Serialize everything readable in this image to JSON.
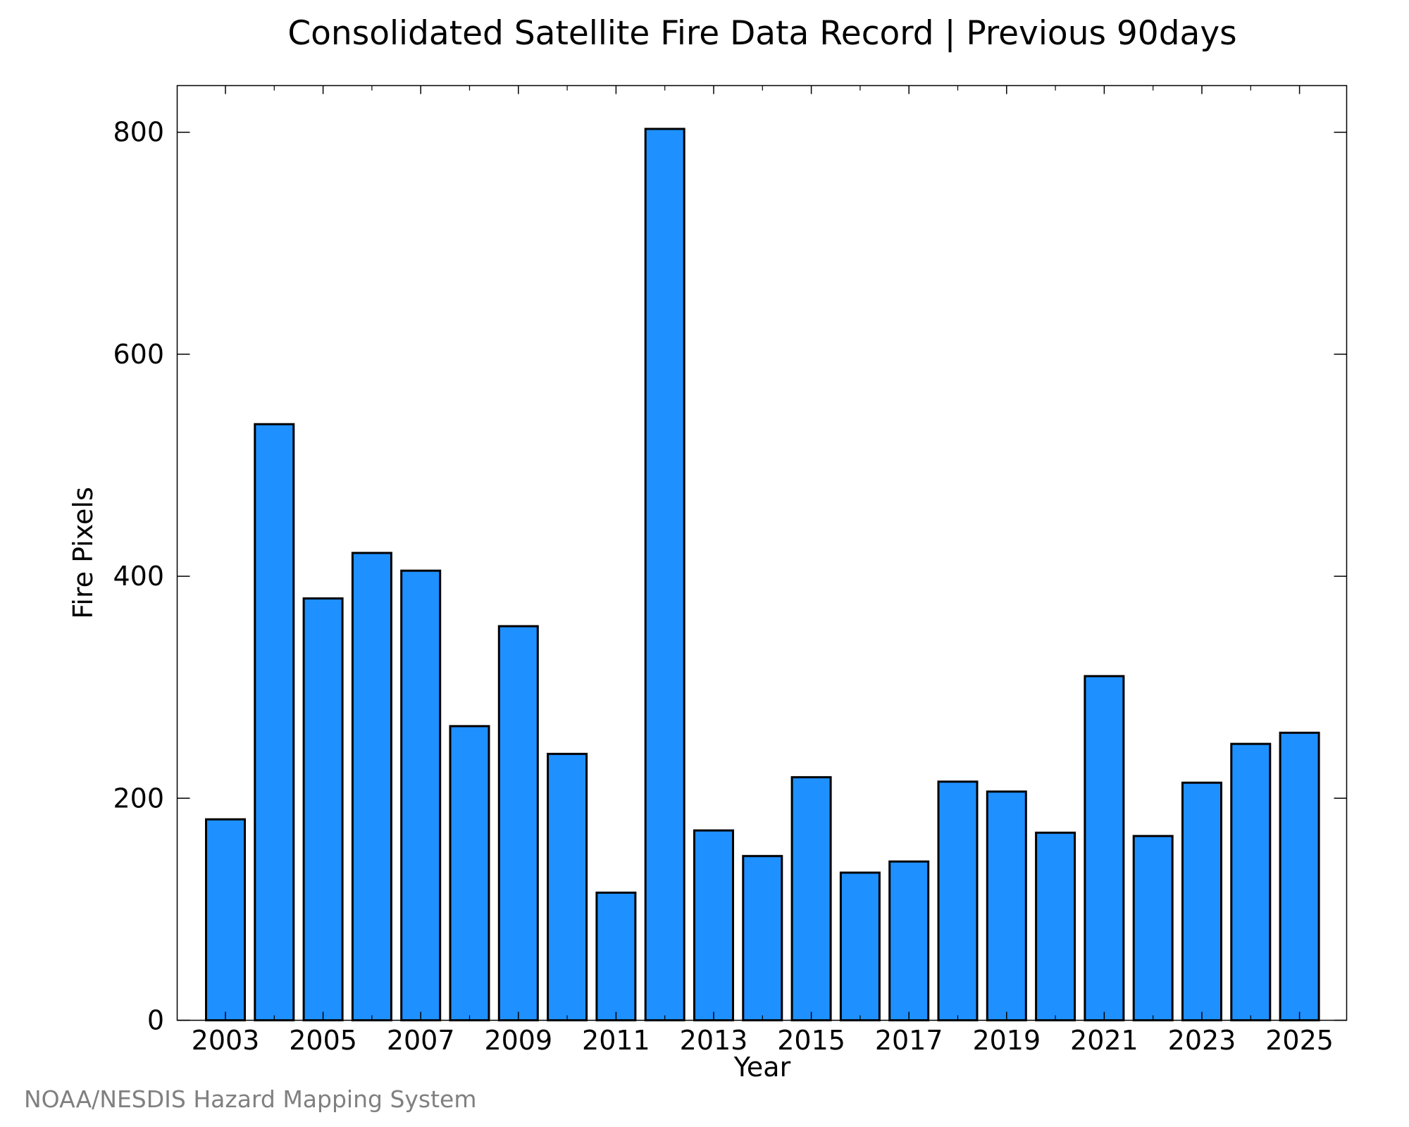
{
  "chart_data": {
    "type": "bar",
    "title": "Consolidated Satellite Fire Data Record | Previous 90days",
    "xlabel": "Year",
    "ylabel": "Fire Pixels",
    "categories": [
      "2003",
      "2004",
      "2005",
      "2006",
      "2007",
      "2008",
      "2009",
      "2010",
      "2011",
      "2012",
      "2013",
      "2014",
      "2015",
      "2016",
      "2017",
      "2018",
      "2019",
      "2020",
      "2021",
      "2022",
      "2023",
      "2024",
      "2025"
    ],
    "values": [
      181,
      537,
      380,
      421,
      405,
      265,
      355,
      240,
      115,
      803,
      171,
      148,
      219,
      133,
      143,
      215,
      206,
      169,
      310,
      166,
      214,
      249,
      259
    ],
    "x_tick_labels": [
      "2003",
      "2005",
      "2007",
      "2009",
      "2011",
      "2013",
      "2015",
      "2017",
      "2019",
      "2021",
      "2023",
      "2025"
    ],
    "y_tick_labels": [
      "0",
      "200",
      "400",
      "600",
      "800"
    ],
    "y_ticks": [
      0,
      200,
      400,
      600,
      800
    ],
    "ylim": [
      0,
      842
    ],
    "grid": false,
    "legend": "none",
    "bar_color": "#1E90FF",
    "bar_edge_color": "#000000",
    "credit": "NOAA/NESDIS Hazard Mapping System"
  }
}
